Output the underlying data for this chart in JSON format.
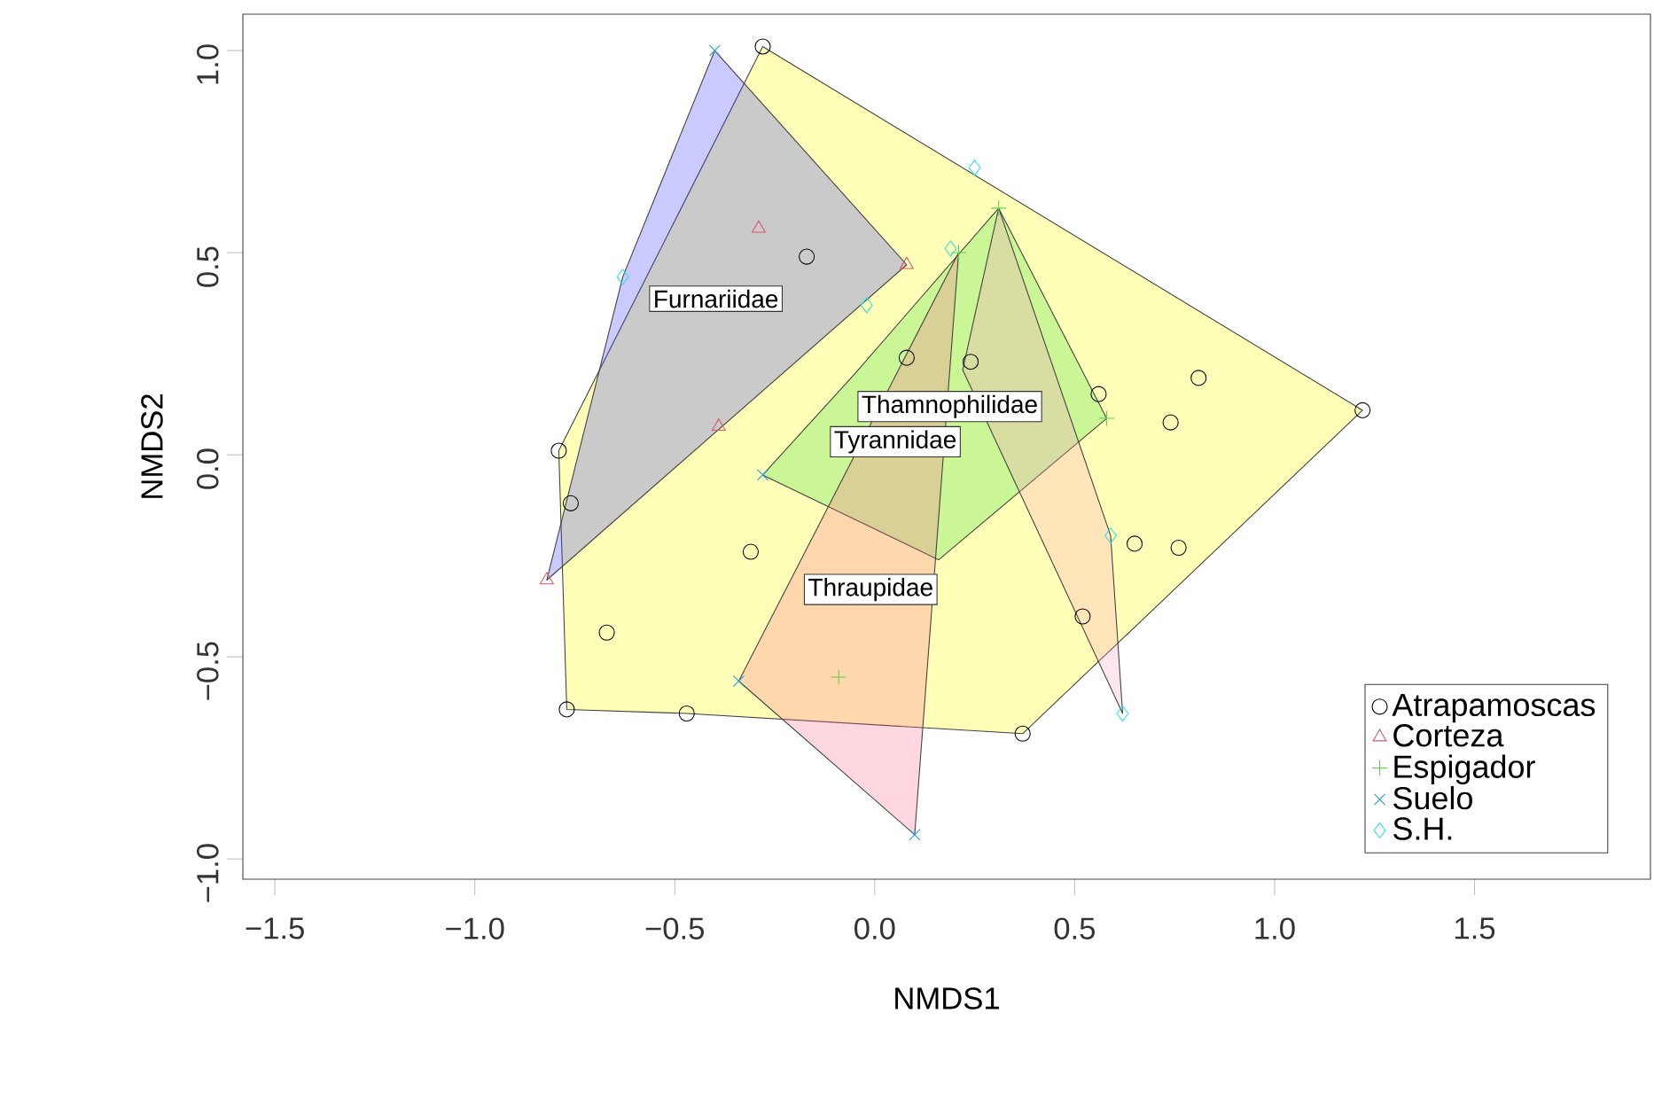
{
  "chart_data": {
    "type": "scatter",
    "xlabel": "NMDS1",
    "ylabel": "NMDS2",
    "xlim": [
      -1.58,
      1.94
    ],
    "ylim": [
      -1.05,
      1.09
    ],
    "xticks": [
      {
        "value": -1.5,
        "label": "−1.5"
      },
      {
        "value": -1,
        "label": "−1.0"
      },
      {
        "value": -0.5,
        "label": "−0.5"
      },
      {
        "value": 0,
        "label": "0.0"
      },
      {
        "value": 0.5,
        "label": "0.5"
      },
      {
        "value": 1,
        "label": "1.0"
      },
      {
        "value": 1.5,
        "label": "1.5"
      }
    ],
    "yticks": [
      {
        "value": -1,
        "label": "−1.0"
      },
      {
        "value": -0.5,
        "label": "−0.5"
      },
      {
        "value": 0,
        "label": "0.0"
      },
      {
        "value": 0.5,
        "label": "0.5"
      },
      {
        "value": 1,
        "label": "1.0"
      }
    ],
    "legend": "bottom right",
    "series": [
      {
        "type": "area",
        "name": "Tyrannidae",
        "color": "#ffff00",
        "x": [
          -0.28,
          1.22,
          0.37,
          -0.47,
          -0.77,
          -0.79
        ],
        "values": [
          1.01,
          0.11,
          -0.69,
          -0.64,
          -0.63,
          0.01
        ]
      },
      {
        "type": "area",
        "name": "Furnariidae",
        "color": "#4040ff",
        "x": [
          -0.4,
          0.08,
          -0.82,
          -0.63
        ],
        "values": [
          1.0,
          0.47,
          -0.31,
          0.44
        ]
      },
      {
        "type": "area",
        "name": "Thamnophilidae",
        "color": "#40e040",
        "x": [
          0.31,
          0.58,
          0.16,
          -0.28,
          -0.05
        ],
        "values": [
          0.61,
          0.09,
          -0.26,
          -0.05,
          0.2
        ]
      },
      {
        "type": "area",
        "name": "Thraupidae",
        "color": "#ff7090",
        "x": [
          0.21,
          0.1,
          -0.34
        ],
        "values": [
          0.5,
          -0.94,
          -0.56
        ]
      },
      {
        "type": "area",
        "color": "#ffa0c0",
        "x": [
          0.31,
          0.59,
          0.62,
          0.22
        ],
        "values": [
          0.61,
          -0.2,
          -0.64,
          0.21
        ]
      },
      {
        "name": "Atrapamoscas",
        "color": "#000000",
        "marker": "circle",
        "x": [
          -0.28,
          1.22,
          0.81,
          0.74,
          0.56,
          0.65,
          0.76,
          0.52,
          0.37,
          -0.47,
          -0.77,
          -0.67,
          -0.31,
          -0.76,
          -0.79,
          -0.17,
          0.24,
          0.08
        ],
        "values": [
          1.01,
          0.11,
          0.19,
          0.08,
          0.15,
          -0.22,
          -0.23,
          -0.4,
          -0.69,
          -0.64,
          -0.63,
          -0.44,
          -0.24,
          -0.12,
          0.01,
          0.49,
          0.23,
          0.24
        ]
      },
      {
        "name": "Corteza",
        "color": "#df536b",
        "marker": "triangle",
        "x": [
          -0.29,
          0.08,
          -0.39,
          -0.82
        ],
        "values": [
          0.56,
          0.47,
          0.07,
          -0.31
        ]
      },
      {
        "name": "Espigador",
        "color": "#61d04f",
        "marker": "plus",
        "x": [
          0.31,
          0.58,
          -0.09,
          0.21
        ],
        "values": [
          0.61,
          0.09,
          -0.55,
          0.5
        ]
      },
      {
        "name": "Suelo",
        "color": "#2297e6",
        "marker": "cross",
        "x": [
          0.1,
          -0.34,
          -0.4,
          -0.28
        ],
        "values": [
          -0.94,
          -0.56,
          1.0,
          -0.05
        ]
      },
      {
        "name": "S.H.",
        "color": "#28e2e5",
        "marker": "diamond",
        "x": [
          0.25,
          -0.63,
          0.62,
          0.59,
          -0.02,
          0.19
        ],
        "values": [
          0.71,
          0.44,
          -0.64,
          -0.2,
          0.37,
          0.51
        ]
      }
    ]
  }
}
